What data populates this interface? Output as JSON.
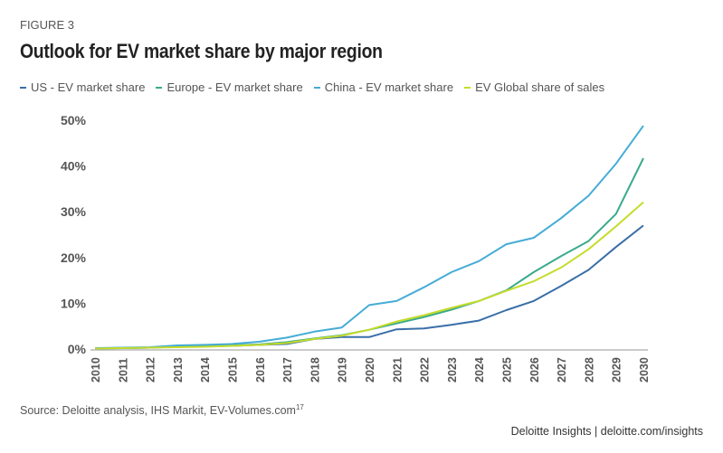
{
  "figure_label": "FIGURE 3",
  "source": "Source: Deloitte analysis, IHS Markit, EV-Volumes.com",
  "source_note": "17",
  "credit": "Deloitte Insights | deloitte.com/insights",
  "chart_data": {
    "type": "line",
    "title": "Outlook for EV market share by major region",
    "xlabel": "",
    "ylabel": "",
    "legend_position": "top",
    "grid": false,
    "ylim": [
      0,
      50
    ],
    "y_ticks": [
      "0%",
      "10%",
      "20%",
      "30%",
      "40%",
      "50%"
    ],
    "x": [
      "2010",
      "2011",
      "2012",
      "2013",
      "2014",
      "2015",
      "2016",
      "2017",
      "2018",
      "2019",
      "2020",
      "2021",
      "2022",
      "2023",
      "2024",
      "2025",
      "2026",
      "2027",
      "2028",
      "2029",
      "2030"
    ],
    "series": [
      {
        "name": "US - EV market share",
        "color": "#3a6fa8",
        "values": [
          0.2,
          0.2,
          0.3,
          0.6,
          0.6,
          0.7,
          0.9,
          1.1,
          2.2,
          2.6,
          2.6,
          4.3,
          4.5,
          5.3,
          6.2,
          8.5,
          10.5,
          13.8,
          17.3,
          22.3,
          27.0
        ]
      },
      {
        "name": "Europe - EV market share",
        "color": "#3aaa8c",
        "values": [
          0.1,
          0.2,
          0.3,
          0.5,
          0.6,
          0.8,
          1.0,
          1.5,
          2.3,
          3.0,
          4.2,
          5.6,
          7.0,
          8.6,
          10.5,
          12.8,
          16.8,
          20.3,
          23.6,
          29.5,
          41.7
        ]
      },
      {
        "name": "China - EV market share",
        "color": "#45acd6",
        "values": [
          0.2,
          0.3,
          0.4,
          0.8,
          0.9,
          1.1,
          1.6,
          2.5,
          3.8,
          4.7,
          9.6,
          10.5,
          13.5,
          16.8,
          19.2,
          22.9,
          24.3,
          28.6,
          33.5,
          40.5,
          48.8
        ]
      },
      {
        "name": "EV Global share of sales",
        "color": "#c5dc2a",
        "values": [
          0.1,
          0.2,
          0.3,
          0.4,
          0.5,
          0.7,
          0.9,
          1.3,
          2.2,
          2.9,
          4.2,
          6.0,
          7.4,
          9.0,
          10.5,
          12.7,
          14.8,
          17.8,
          21.8,
          26.8,
          32.1
        ]
      }
    ]
  }
}
